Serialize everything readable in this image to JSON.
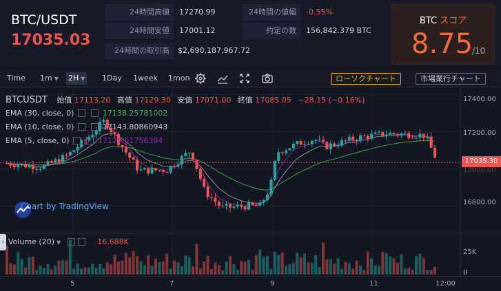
{
  "header": {
    "pair": "BTC/USDT",
    "price": "17035.03",
    "stats": [
      {
        "label": "24時間高値",
        "value": "17270.99"
      },
      {
        "label": "24時間安値",
        "value": "17001.12"
      },
      {
        "label": "24時間の取引高",
        "value": "$2,690,187,967.72"
      },
      {
        "label": "24時間の値幅",
        "value": "-0.55%"
      },
      {
        "label": "約定の数",
        "value": "156,842.379 BTC"
      }
    ],
    "score": {
      "symbol": "BTC",
      "word": "スコア",
      "value": "8.75",
      "max": "/10"
    }
  },
  "toolbar": {
    "time_label": "Time",
    "intervals": [
      "1m",
      "2H",
      "1Day",
      "1week",
      "1mon"
    ],
    "active_interval": "2H",
    "candle_button": "ローソクチャート",
    "market_button": "市場業行チャート"
  },
  "chart_legend": {
    "symbol": "BTCUSDT",
    "open_label": "始值",
    "open": "17113.20",
    "high_label": "高值",
    "high": "17129.30",
    "low_label": "安值",
    "low": "17071.00",
    "close_label": "終值",
    "close": "17085.05",
    "change": "−28.15 (−0.16%)",
    "ema": [
      {
        "label": "EMA (30, close, 0)",
        "value": "17138.25781002",
        "color": "#4caf50"
      },
      {
        "label": "EMA (10, close, 0)",
        "value": "17143.80860943",
        "color": "#c8ccd4"
      },
      {
        "label": "EMA (5, close, 0)",
        "value": "17129.01756394",
        "color": "#9c27b0"
      }
    ],
    "watermark": "Chart by TradingView",
    "volume_label": "Volume (20)",
    "volume_value": "16.688K",
    "last_price_tag": "17035.30"
  },
  "chart_data": {
    "type": "candlestick",
    "x_ticks": [
      "5",
      "7",
      "9",
      "11",
      "12:00"
    ],
    "y_ticks": [
      "17400.00",
      "17200.00",
      "17000.00",
      "16800.00"
    ],
    "ylim": [
      16680,
      17420
    ],
    "volume_ticks": [
      "25K",
      "0"
    ],
    "last_price": 17035.3,
    "colors": {
      "up": "#26a69a",
      "down": "#ef5350"
    }
  }
}
